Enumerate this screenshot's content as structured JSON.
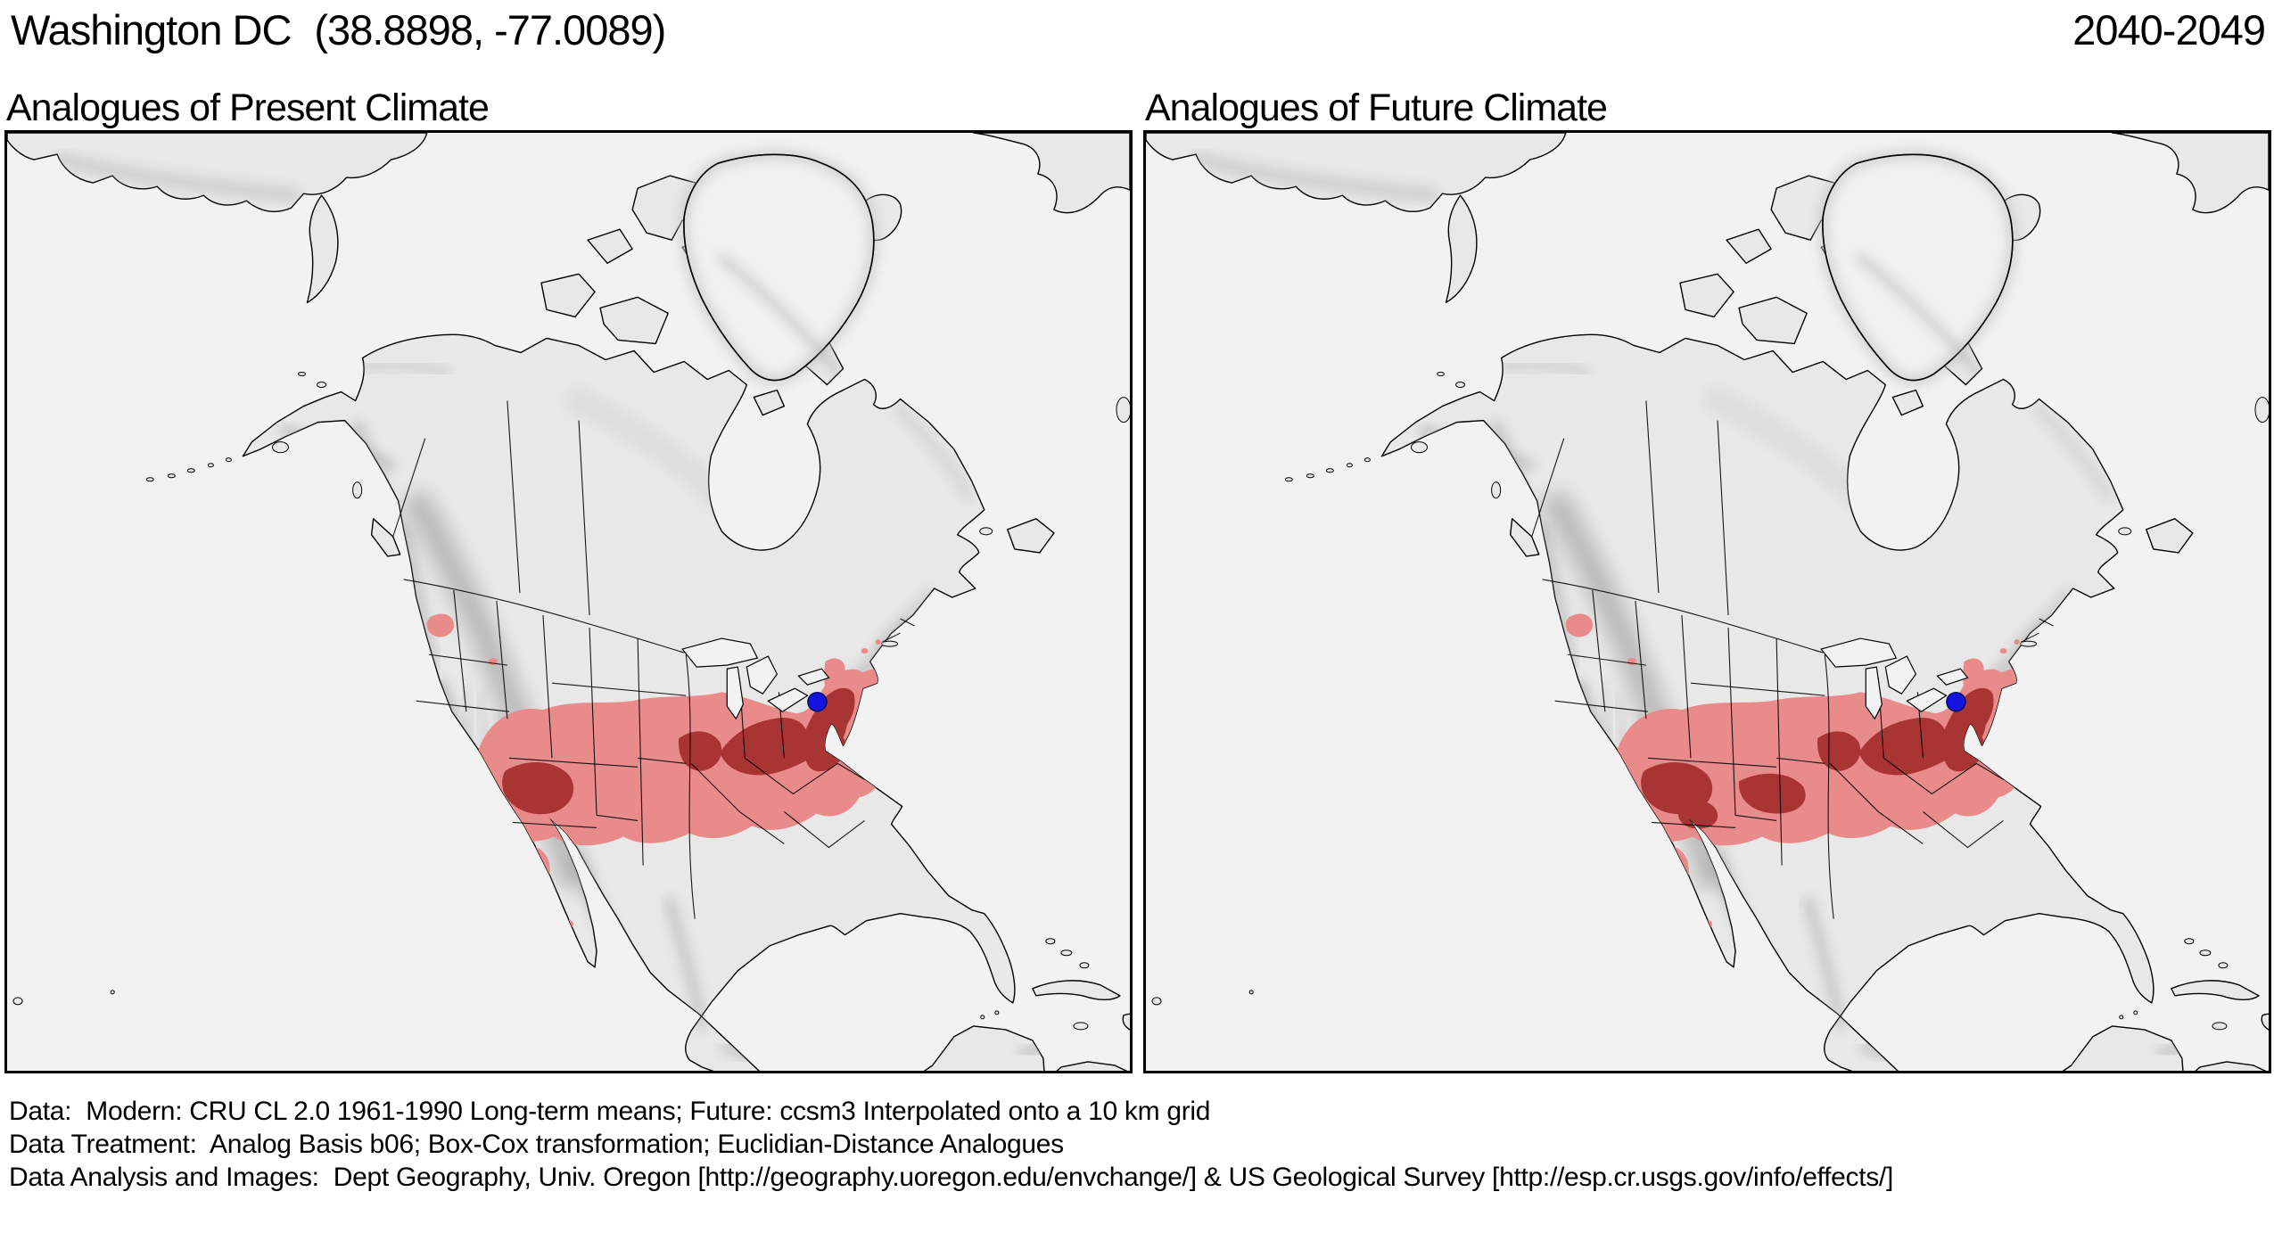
{
  "header": {
    "location": "Washington DC",
    "coordinates": "(38.8898, -77.0089)",
    "period": "2040-2049"
  },
  "panels": [
    {
      "title": "Analogues of Present Climate"
    },
    {
      "title": "Analogues of Future Climate"
    }
  ],
  "marker": {
    "label": "Washington DC reference location",
    "color": "#1414e0"
  },
  "map": {
    "ocean_color": "#f2f2f2",
    "land_color": "#e8e8e8",
    "ice_color": "#f0f0f0",
    "outline_color": "#000000",
    "analog_light_color": "#e98b8b",
    "analog_dark_color": "#a93434"
  },
  "footer": {
    "lines": [
      "Data:  Modern: CRU CL 2.0 1961-1990 Long-term means; Future: ccsm3 Interpolated onto a 10 km grid",
      "Data Treatment:  Analog Basis b06; Box-Cox transformation; Euclidian-Distance Analogues",
      "Data Analysis and Images:  Dept Geography, Univ. Oregon [http://geography.uoregon.edu/envchange/] & US Geological Survey [http://esp.cr.usgs.gov/info/effects/]"
    ]
  }
}
